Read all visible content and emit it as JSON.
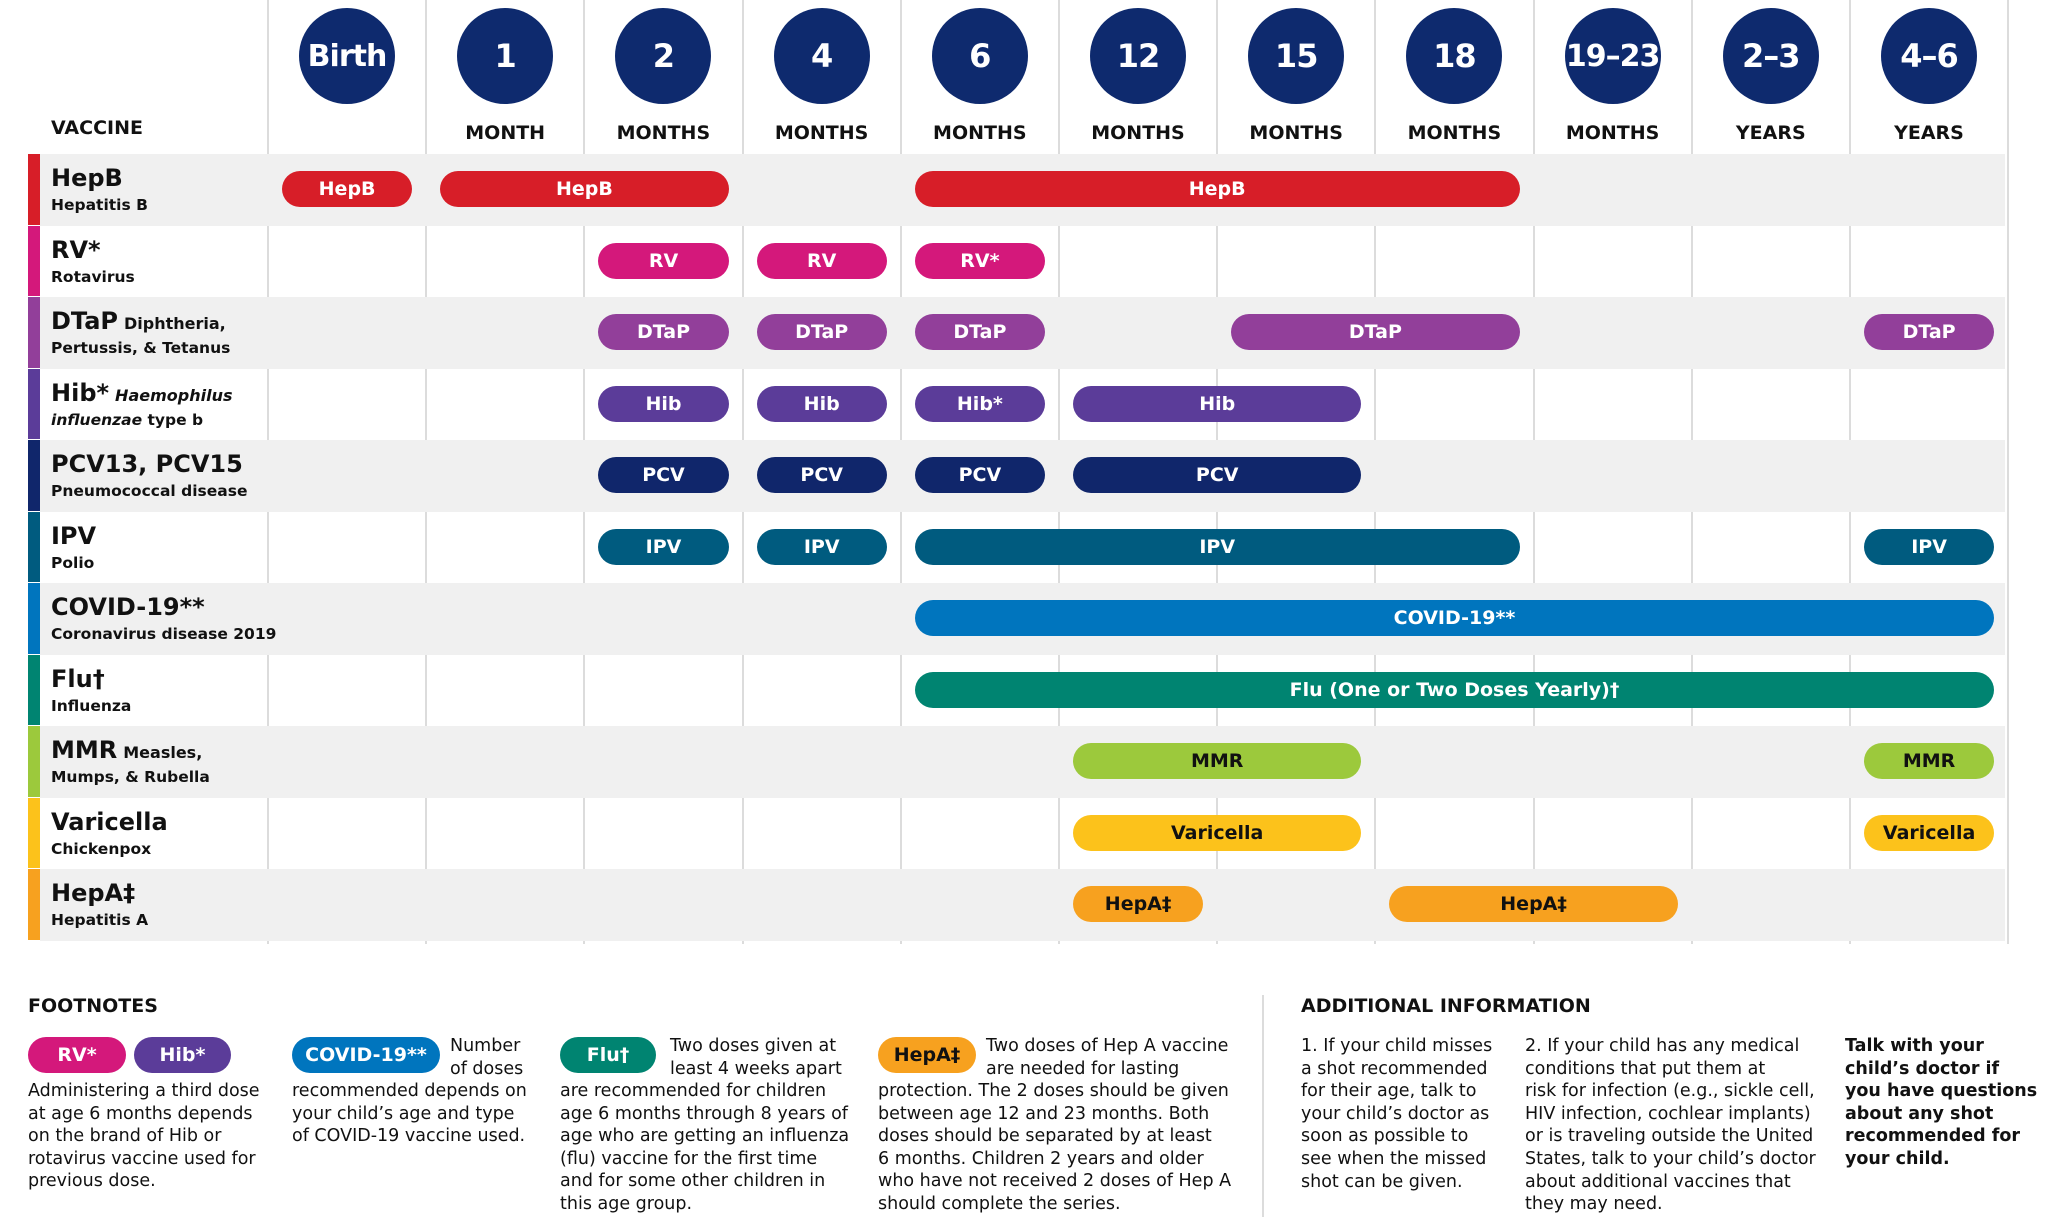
{
  "header": {
    "vaccine_label": "VACCINE",
    "columns": [
      {
        "num": "Birth",
        "unit": ""
      },
      {
        "num": "1",
        "unit": "MONTH"
      },
      {
        "num": "2",
        "unit": "MONTHS"
      },
      {
        "num": "4",
        "unit": "MONTHS"
      },
      {
        "num": "6",
        "unit": "MONTHS"
      },
      {
        "num": "12",
        "unit": "MONTHS"
      },
      {
        "num": "15",
        "unit": "MONTHS"
      },
      {
        "num": "18",
        "unit": "MONTHS"
      },
      {
        "num": "19–23",
        "unit": "MONTHS"
      },
      {
        "num": "2–3",
        "unit": "YEARS"
      },
      {
        "num": "4–6",
        "unit": "YEARS"
      }
    ]
  },
  "colors": {
    "header_circle": "#0e2a6e",
    "row_shade": "#f0f0f0",
    "hepb": "#d71e28",
    "rv": "#d4187b",
    "dtap": "#923f9a",
    "hib": "#5b3c99",
    "pcv": "#10266b",
    "ipv": "#005b7f",
    "covid": "#0075be",
    "flu": "#008471",
    "mmr": "#9cc93c",
    "varicella": "#fcc21b",
    "hepa": "#f7a11f"
  },
  "vaccines": [
    {
      "name": "HepB",
      "inline": "",
      "sub": "Hepatitis B",
      "color": "#d71e28",
      "doses": [
        {
          "label": "HepB",
          "start": 0,
          "end": 0
        },
        {
          "label": "HepB",
          "start": 1,
          "end": 2
        },
        {
          "label": "HepB",
          "start": 4,
          "end": 7
        }
      ]
    },
    {
      "name": "RV*",
      "inline": "",
      "sub": "Rotavirus",
      "color": "#d4187b",
      "doses": [
        {
          "label": "RV",
          "start": 2,
          "end": 2
        },
        {
          "label": "RV",
          "start": 3,
          "end": 3
        },
        {
          "label": "RV*",
          "start": 4,
          "end": 4
        }
      ]
    },
    {
      "name": "DTaP",
      "inline": "Diphtheria,",
      "sub": "Pertussis, & Tetanus",
      "color": "#923f9a",
      "doses": [
        {
          "label": "DTaP",
          "start": 2,
          "end": 2
        },
        {
          "label": "DTaP",
          "start": 3,
          "end": 3
        },
        {
          "label": "DTaP",
          "start": 4,
          "end": 4
        },
        {
          "label": "DTaP",
          "start": 6,
          "end": 7
        },
        {
          "label": "DTaP",
          "start": 10,
          "end": 10
        }
      ]
    },
    {
      "name": "Hib*",
      "inline": "Haemophilus",
      "inline_italic": true,
      "sub": "influenzae",
      "sub_tail": " type b",
      "color": "#5b3c99",
      "doses": [
        {
          "label": "Hib",
          "start": 2,
          "end": 2
        },
        {
          "label": "Hib",
          "start": 3,
          "end": 3
        },
        {
          "label": "Hib*",
          "start": 4,
          "end": 4
        },
        {
          "label": "Hib",
          "start": 5,
          "end": 6
        }
      ]
    },
    {
      "name": "PCV13, PCV15",
      "inline": "",
      "sub": "Pneumococcal disease",
      "color": "#10266b",
      "doses": [
        {
          "label": "PCV",
          "start": 2,
          "end": 2
        },
        {
          "label": "PCV",
          "start": 3,
          "end": 3
        },
        {
          "label": "PCV",
          "start": 4,
          "end": 4
        },
        {
          "label": "PCV",
          "start": 5,
          "end": 6
        }
      ]
    },
    {
      "name": "IPV",
      "inline": "",
      "sub": "Polio",
      "color": "#005b7f",
      "doses": [
        {
          "label": "IPV",
          "start": 2,
          "end": 2
        },
        {
          "label": "IPV",
          "start": 3,
          "end": 3
        },
        {
          "label": "IPV",
          "start": 4,
          "end": 7
        },
        {
          "label": "IPV",
          "start": 10,
          "end": 10
        }
      ]
    },
    {
      "name": "COVID-19**",
      "inline": "",
      "sub": "Coronavirus disease 2019",
      "color": "#0075be",
      "doses": [
        {
          "label": "COVID-19**",
          "start": 4,
          "end": 10
        }
      ]
    },
    {
      "name": "Flu†",
      "inline": "",
      "sub": "Influenza",
      "color": "#008471",
      "doses": [
        {
          "label": "Flu (One or Two Doses Yearly)†",
          "start": 4,
          "end": 10
        }
      ]
    },
    {
      "name": "MMR",
      "inline": "Measles,",
      "sub": "Mumps, & Rubella",
      "color": "#9cc93c",
      "dark": true,
      "doses": [
        {
          "label": "MMR",
          "start": 5,
          "end": 6
        },
        {
          "label": "MMR",
          "start": 10,
          "end": 10
        }
      ]
    },
    {
      "name": "Varicella",
      "inline": "",
      "sub": "Chickenpox",
      "color": "#fcc21b",
      "dark": true,
      "doses": [
        {
          "label": "Varicella",
          "start": 5,
          "end": 6
        },
        {
          "label": "Varicella",
          "start": 10,
          "end": 10
        }
      ]
    },
    {
      "name": "HepA‡",
      "inline": "",
      "sub": "Hepatitis A",
      "color": "#f7a11f",
      "dark": true,
      "doses": [
        {
          "label": "HepA‡",
          "start": 5,
          "end": 5
        },
        {
          "label": "HepA‡",
          "start": 7,
          "end": 8
        }
      ]
    }
  ],
  "footnotes": {
    "title": "FOOTNOTES",
    "rv_hib": {
      "pill_rv": "RV*",
      "pill_hib": "Hib*",
      "lines": [
        "Administering a third dose",
        "at age 6 months depends",
        "on the brand of Hib or",
        "rotavirus vaccine used for",
        "previous dose."
      ]
    },
    "covid": {
      "pill": "COVID-19**",
      "side": [
        "Number",
        "of doses"
      ],
      "lines": [
        "recommended depends on",
        "your child’s age and type",
        "of COVID-19 vaccine used."
      ]
    },
    "flu": {
      "pill": "Flu†",
      "side": [
        "Two doses given at",
        "least 4 weeks apart"
      ],
      "lines": [
        "are recommended for children",
        "age 6 months through 8 years of",
        "age who are getting an influenza",
        "(flu) vaccine for the first time",
        "and for some other children in",
        "this age group."
      ]
    },
    "hepa": {
      "pill": "HepA‡",
      "side": [
        "Two doses of Hep A vaccine",
        "are needed for lasting"
      ],
      "lines": [
        "protection. The 2 doses should be given",
        "between age 12 and 23 months. Both",
        "doses should be separated by at least",
        "6 months. Children 2 years and older",
        "who have not received 2 doses of Hep A",
        "should complete the series."
      ]
    }
  },
  "additional": {
    "title": "ADDITIONAL INFORMATION",
    "col1": [
      "1. If your child misses",
      "a shot recommended",
      "for their age, talk to",
      "your child’s doctor as",
      "soon as possible to",
      "see when the missed",
      "shot can be given."
    ],
    "col2": [
      "2. If your child has any medical",
      "conditions that put them at",
      "risk for infection (e.g., sickle cell,",
      "HIV infection, cochlear implants)",
      "or is traveling outside the United",
      "States, talk to your child’s doctor",
      "about additional vaccines that",
      "they may need."
    ],
    "col3": [
      "Talk with your",
      "child’s doctor if",
      "you have questions",
      "about any shot",
      "recommended for",
      "your child."
    ]
  }
}
